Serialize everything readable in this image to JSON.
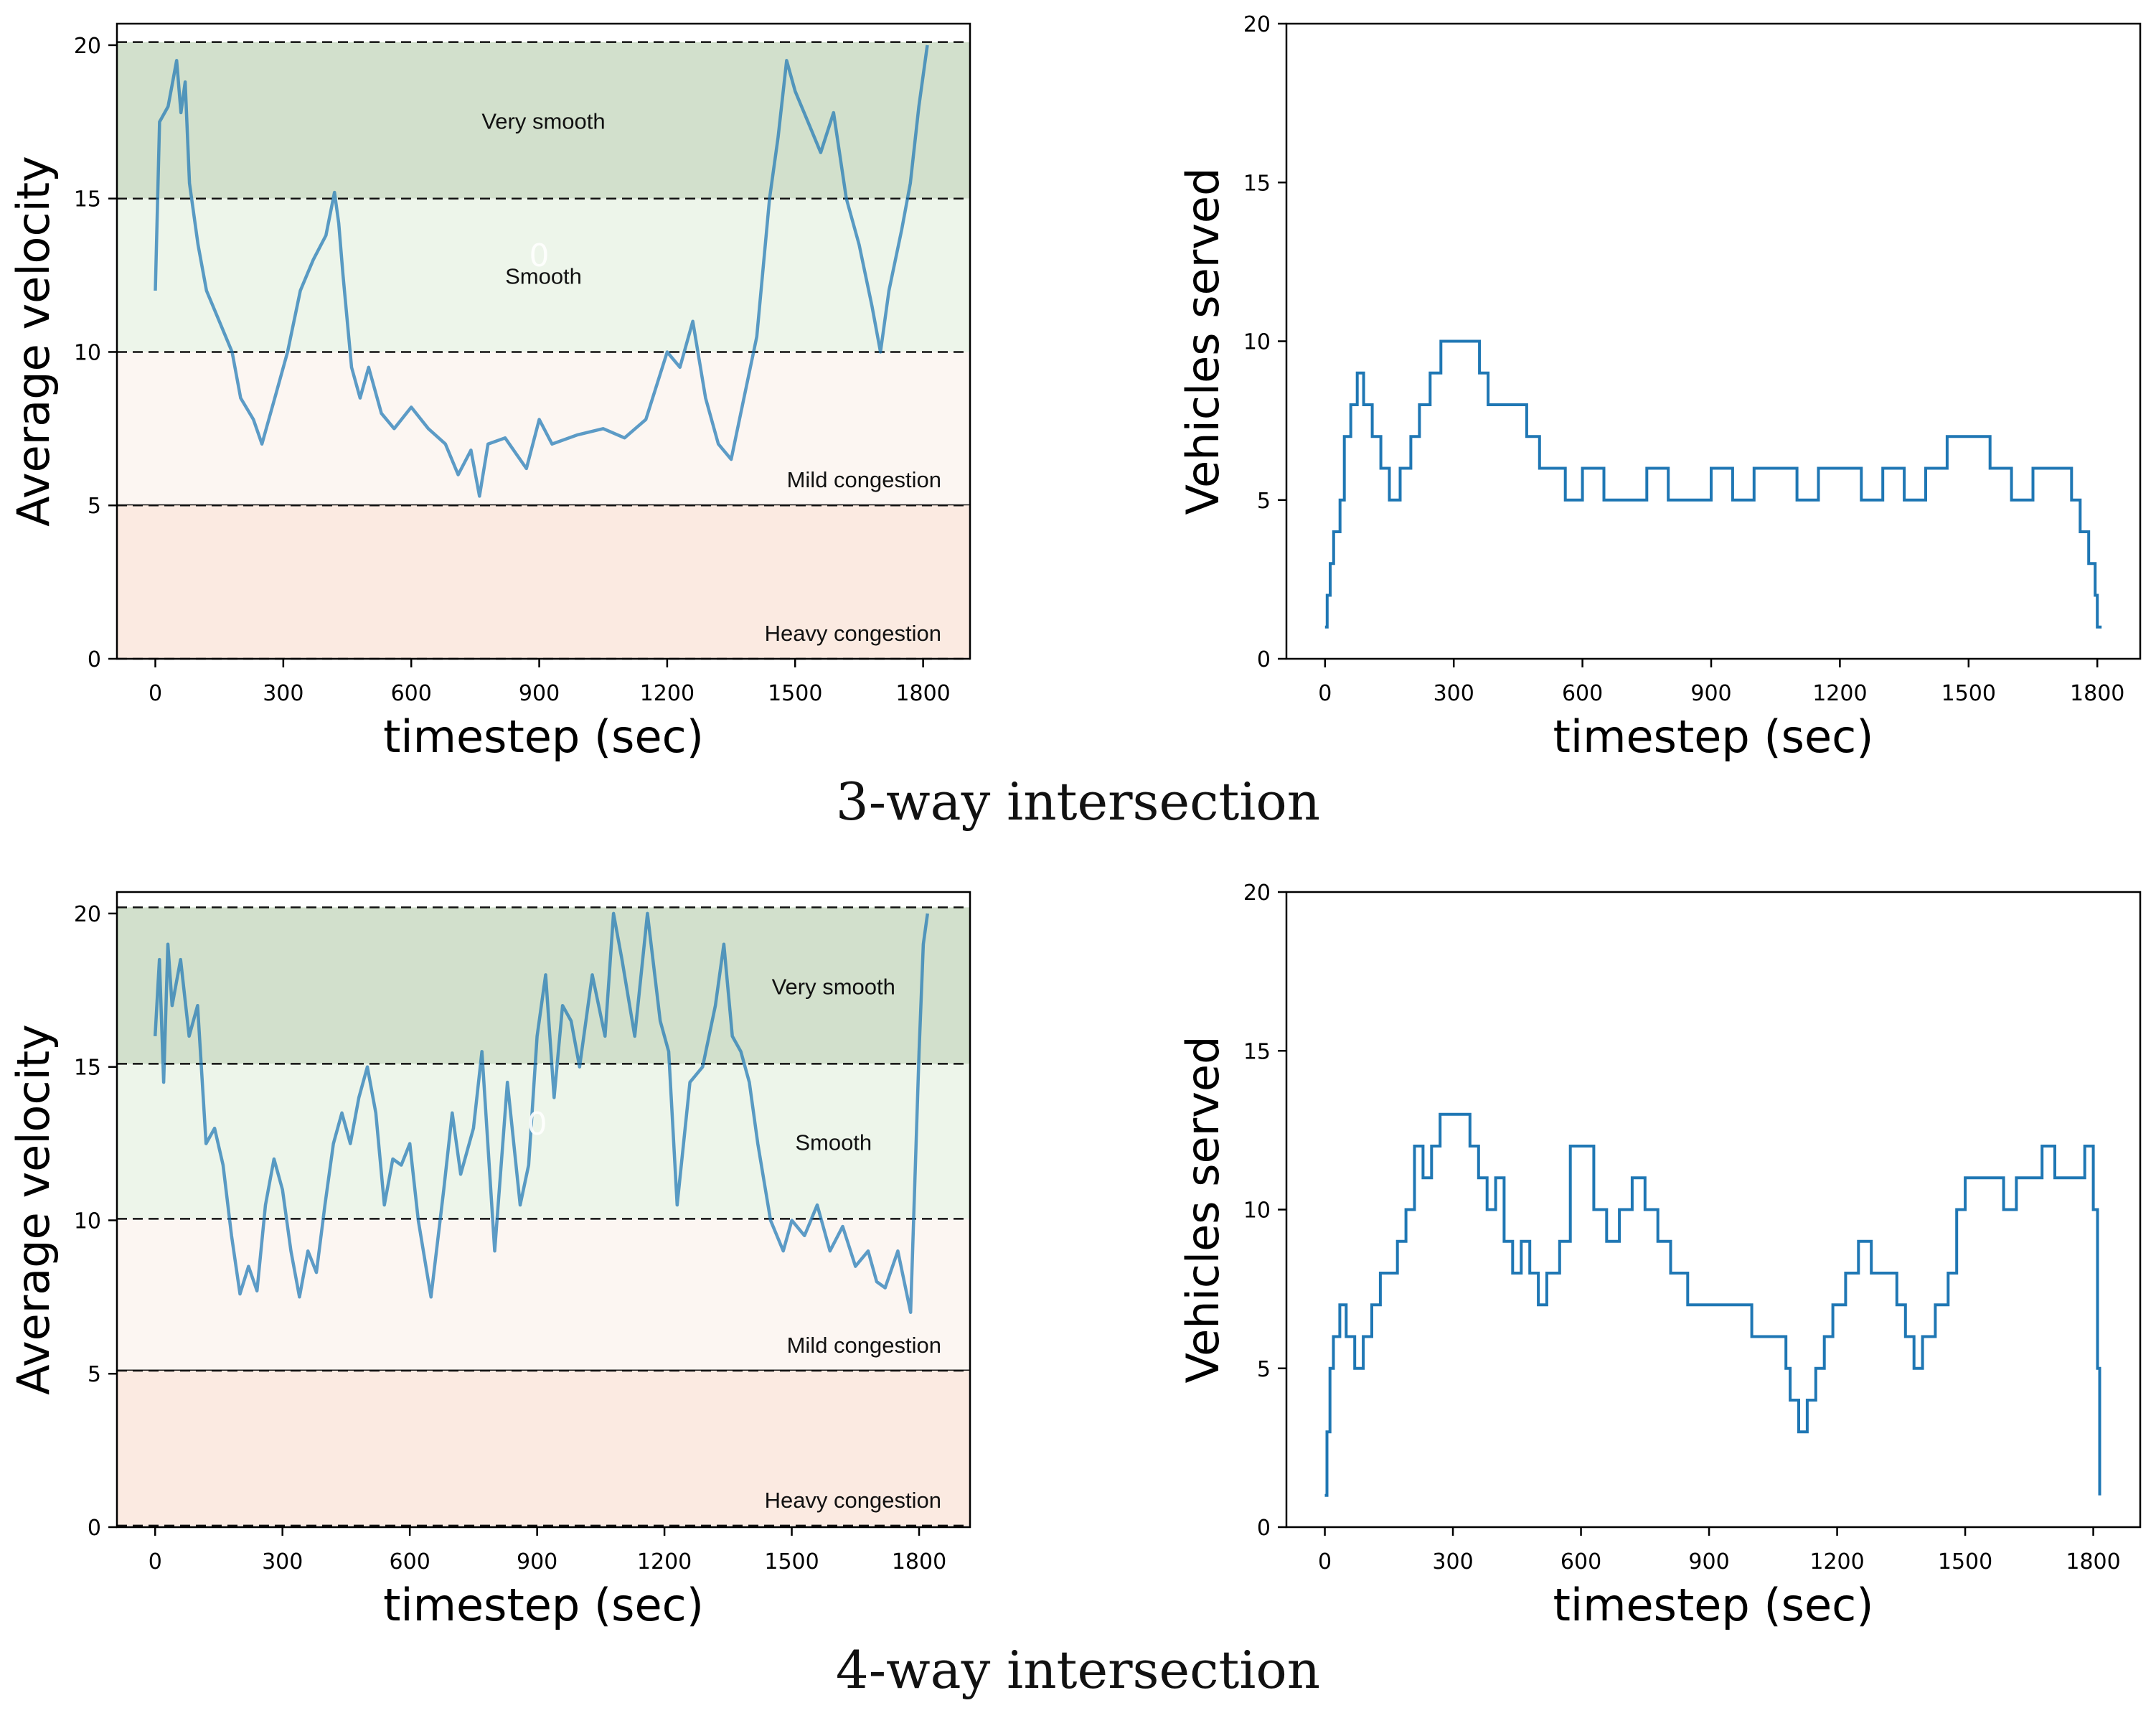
{
  "figure": {
    "captions": [
      "3-way intersection",
      "4-way intersection"
    ]
  },
  "colors": {
    "line": "#1f77b4",
    "very_smooth_band": "#d2e0cc",
    "smooth_band": "#edf5ea",
    "mild_band": "#fcf6f2",
    "heavy_band": "#fbeae1"
  },
  "chart_data": [
    {
      "id": "v3",
      "type": "line",
      "panel": "3-way intersection",
      "xlabel": "timestep (sec)",
      "ylabel": "Average velocity",
      "xticks": [
        0,
        300,
        600,
        900,
        1200,
        1500,
        1800
      ],
      "xlim": [
        -90,
        1910
      ],
      "yticks": [
        0,
        5,
        10,
        15,
        20
      ],
      "ylim": [
        0,
        20.7
      ],
      "bands": [
        {
          "label": "Very smooth",
          "from": 15,
          "to": 20.1,
          "color": "#d2e0cc"
        },
        {
          "label": "Smooth",
          "from": 10,
          "to": 15,
          "color": "#edf5ea"
        },
        {
          "label": "Mild congestion",
          "from": 5,
          "to": 10,
          "color": "#fcf6f2"
        },
        {
          "label": "Heavy congestion",
          "from": 0,
          "to": 5,
          "color": "#fbeae1"
        }
      ],
      "stray_label": "0",
      "series_t": [
        0,
        10,
        30,
        50,
        60,
        70,
        80,
        100,
        120,
        150,
        180,
        200,
        230,
        250,
        280,
        310,
        340,
        370,
        400,
        420,
        430,
        440,
        460,
        480,
        500,
        530,
        560,
        600,
        640,
        680,
        710,
        740,
        760,
        780,
        820,
        870,
        900,
        930,
        990,
        1050,
        1100,
        1150,
        1200,
        1230,
        1260,
        1290,
        1320,
        1350,
        1380,
        1410,
        1440,
        1460,
        1480,
        1500,
        1530,
        1560,
        1590,
        1620,
        1650,
        1680,
        1700,
        1720,
        1750,
        1770,
        1790,
        1810
      ],
      "series_v": [
        12,
        17.5,
        18,
        19.5,
        17.8,
        18.8,
        15.5,
        13.5,
        12,
        11,
        10,
        8.5,
        7.8,
        7,
        8.5,
        10,
        12,
        13,
        13.8,
        15.2,
        14.2,
        12.5,
        9.5,
        8.5,
        9.5,
        8,
        7.5,
        8.2,
        7.5,
        7,
        6,
        6.8,
        5.3,
        7,
        7.2,
        6.2,
        7.8,
        7,
        7.3,
        7.5,
        7.2,
        7.8,
        10,
        9.5,
        11,
        8.5,
        7,
        6.5,
        8.5,
        10.5,
        15,
        17,
        19.5,
        18.5,
        17.5,
        16.5,
        17.8,
        15,
        13.5,
        11.5,
        10,
        12,
        14,
        15.5,
        18,
        20
      ]
    },
    {
      "id": "s3",
      "type": "line",
      "panel": "3-way intersection",
      "xlabel": "timestep (sec)",
      "ylabel": "Vehicles served",
      "xticks": [
        0,
        300,
        600,
        900,
        1200,
        1500,
        1800
      ],
      "xlim": [
        -90,
        1900
      ],
      "yticks": [
        0,
        5,
        10,
        15,
        20
      ],
      "ylim": [
        0,
        20
      ],
      "series_t": [
        0,
        5,
        12,
        20,
        35,
        45,
        60,
        75,
        90,
        110,
        130,
        150,
        175,
        200,
        220,
        245,
        270,
        300,
        330,
        360,
        380,
        410,
        440,
        470,
        500,
        530,
        560,
        600,
        650,
        700,
        750,
        800,
        850,
        900,
        950,
        1000,
        1050,
        1100,
        1150,
        1200,
        1250,
        1300,
        1350,
        1400,
        1450,
        1470,
        1500,
        1550,
        1600,
        1650,
        1700,
        1740,
        1760,
        1780,
        1795,
        1800,
        1810
      ],
      "series_v": [
        1,
        2,
        3,
        4,
        5,
        7,
        8,
        9,
        8,
        7,
        6,
        5,
        6,
        7,
        8,
        9,
        10,
        10,
        10,
        9,
        8,
        8,
        8,
        7,
        6,
        6,
        5,
        6,
        5,
        5,
        6,
        5,
        5,
        6,
        5,
        6,
        6,
        5,
        6,
        6,
        5,
        6,
        5,
        6,
        7,
        7,
        7,
        6,
        5,
        6,
        6,
        5,
        4,
        3,
        2,
        1,
        1
      ]
    },
    {
      "id": "v4",
      "type": "line",
      "panel": "4-way intersection",
      "xlabel": "timestep (sec)",
      "ylabel": "Average velocity",
      "xticks": [
        0,
        300,
        600,
        900,
        1200,
        1500,
        1800
      ],
      "xlim": [
        -90,
        1920
      ],
      "yticks": [
        0,
        5,
        10,
        15,
        20
      ],
      "ylim": [
        0,
        20.7
      ],
      "bands": [
        {
          "label": "Very smooth",
          "from": 15.1,
          "to": 20.2,
          "color": "#d2e0cc"
        },
        {
          "label": "Smooth",
          "from": 10.05,
          "to": 15.1,
          "color": "#edf5ea"
        },
        {
          "label": "Mild congestion",
          "from": 5.1,
          "to": 10.05,
          "color": "#fcf6f2"
        },
        {
          "label": "Heavy congestion",
          "from": 0.05,
          "to": 5.1,
          "color": "#fbeae1"
        }
      ],
      "stray_label": "0",
      "series_t": [
        0,
        10,
        20,
        30,
        40,
        60,
        80,
        100,
        120,
        140,
        160,
        180,
        200,
        220,
        240,
        260,
        280,
        300,
        320,
        340,
        360,
        380,
        400,
        420,
        440,
        460,
        480,
        500,
        520,
        540,
        560,
        580,
        600,
        620,
        650,
        680,
        700,
        720,
        750,
        770,
        800,
        830,
        860,
        880,
        900,
        920,
        940,
        960,
        980,
        1000,
        1030,
        1060,
        1080,
        1100,
        1130,
        1160,
        1190,
        1210,
        1230,
        1260,
        1290,
        1320,
        1340,
        1360,
        1380,
        1400,
        1420,
        1450,
        1480,
        1500,
        1530,
        1560,
        1590,
        1620,
        1650,
        1680,
        1700,
        1720,
        1750,
        1780,
        1800,
        1810,
        1820
      ],
      "series_v": [
        16,
        18.5,
        14.5,
        19,
        17,
        18.5,
        16,
        17,
        12.5,
        13,
        11.8,
        9.5,
        7.6,
        8.5,
        7.7,
        10.5,
        12,
        11,
        9,
        7.5,
        9,
        8.3,
        10.5,
        12.5,
        13.5,
        12.5,
        14,
        15,
        13.5,
        10.5,
        12,
        11.8,
        12.5,
        10,
        7.5,
        11,
        13.5,
        11.5,
        13,
        15.5,
        9,
        14.5,
        10.5,
        11.8,
        16,
        18,
        14,
        17,
        16.5,
        15,
        18,
        16,
        20,
        18.5,
        16,
        20,
        16.5,
        15.5,
        10.5,
        14.5,
        15,
        17,
        19,
        16,
        15.5,
        14.5,
        12.5,
        10,
        9,
        10,
        9.5,
        10.5,
        9,
        9.8,
        8.5,
        9,
        8,
        7.8,
        9,
        7,
        15.5,
        19,
        20
      ]
    },
    {
      "id": "s4",
      "type": "line",
      "panel": "4-way intersection",
      "xlabel": "timestep (sec)",
      "ylabel": "Vehicles served",
      "xticks": [
        0,
        300,
        600,
        900,
        1200,
        1500,
        1800
      ],
      "xlim": [
        -90,
        1910
      ],
      "yticks": [
        0,
        5,
        10,
        15,
        20
      ],
      "ylim": [
        0,
        20
      ],
      "series_t": [
        0,
        5,
        12,
        20,
        35,
        50,
        70,
        90,
        110,
        130,
        150,
        170,
        190,
        210,
        230,
        250,
        270,
        300,
        320,
        340,
        360,
        380,
        400,
        420,
        440,
        460,
        480,
        500,
        520,
        550,
        575,
        600,
        630,
        660,
        690,
        720,
        750,
        780,
        810,
        850,
        900,
        950,
        1000,
        1030,
        1060,
        1080,
        1090,
        1110,
        1130,
        1150,
        1170,
        1190,
        1220,
        1250,
        1280,
        1310,
        1340,
        1360,
        1380,
        1400,
        1430,
        1460,
        1480,
        1500,
        1530,
        1560,
        1590,
        1620,
        1650,
        1680,
        1710,
        1740,
        1760,
        1780,
        1800,
        1810,
        1815
      ],
      "series_v": [
        1,
        3,
        5,
        6,
        7,
        6,
        5,
        6,
        7,
        8,
        8,
        9,
        10,
        12,
        11,
        12,
        13,
        13,
        13,
        12,
        11,
        10,
        11,
        9,
        8,
        9,
        8,
        7,
        8,
        9,
        12,
        12,
        10,
        9,
        10,
        11,
        10,
        9,
        8,
        7,
        7,
        7,
        6,
        6,
        6,
        5,
        4,
        3,
        4,
        5,
        6,
        7,
        8,
        9,
        8,
        8,
        7,
        6,
        5,
        6,
        7,
        8,
        10,
        11,
        11,
        11,
        10,
        11,
        11,
        12,
        11,
        11,
        11,
        12,
        10,
        5,
        1
      ]
    }
  ]
}
